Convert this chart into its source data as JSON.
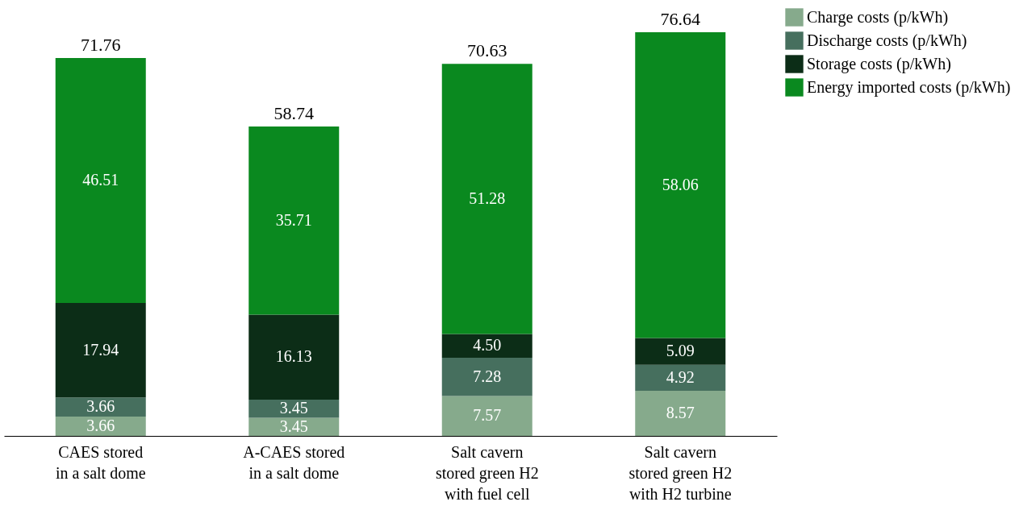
{
  "chart_data": {
    "type": "bar",
    "stacked": true,
    "legend": "top right",
    "grid": false,
    "categories": [
      "CAES stored\nin a salt dome",
      "A-CAES stored\nin a salt dome",
      "Salt cavern\nstored green H2\nwith fuel cell",
      "Salt cavern\nstored green H2\nwith H2 turbine"
    ],
    "series": [
      {
        "name": "Charge costs (p/kWh)",
        "color": "#86aa8c",
        "values": [
          3.66,
          3.45,
          7.57,
          8.57
        ],
        "value_labels": [
          "3.66",
          "3.45",
          "7.57",
          "8.57"
        ]
      },
      {
        "name": "Discharge costs (p/kWh)",
        "color": "#466f5e",
        "values": [
          3.66,
          3.45,
          7.28,
          4.92
        ],
        "value_labels": [
          "3.66",
          "3.45",
          "7.28",
          "4.92"
        ]
      },
      {
        "name": "Storage costs (p/kWh)",
        "color": "#0c2d17",
        "values": [
          17.94,
          16.13,
          4.5,
          5.09
        ],
        "value_labels": [
          "17.94",
          "16.13",
          "4.50",
          "5.09"
        ]
      },
      {
        "name": "Energy imported costs (p/kWh)",
        "color": "#0a891f",
        "values": [
          46.51,
          35.71,
          51.28,
          58.06
        ],
        "value_labels": [
          "46.51",
          "35.71",
          "51.28",
          "58.06"
        ]
      }
    ],
    "totals": [
      "71.76",
      "58.74",
      "70.63",
      "76.64"
    ]
  }
}
